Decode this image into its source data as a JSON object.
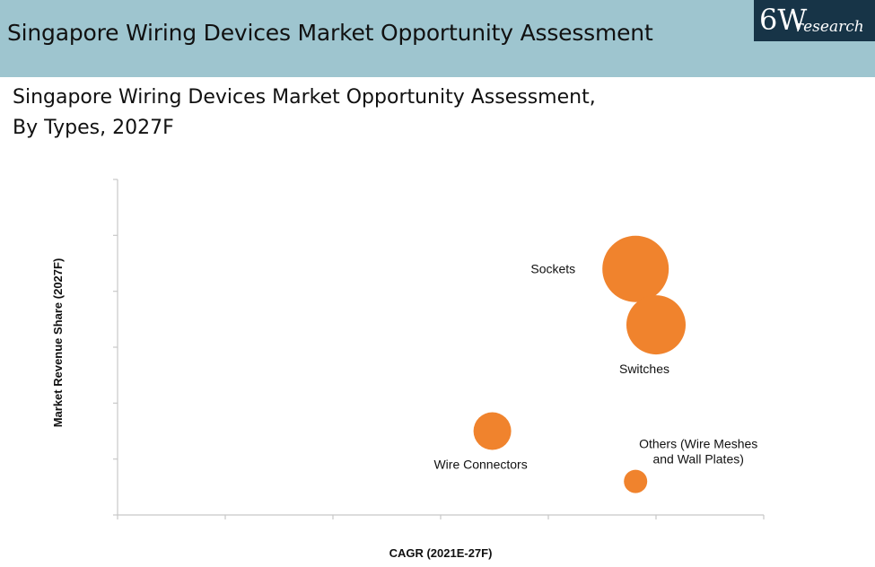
{
  "header": {
    "title": "Singapore Wiring Devices Market Opportunity Assessment",
    "logo_main": "6W",
    "logo_sub": "research"
  },
  "subtitle": {
    "line1": "Singapore Wiring Devices Market Opportunity Assessment,",
    "line2": "By Types, 2027F"
  },
  "colors": {
    "header_bg": "#9ec5cf",
    "logo_bg": "#173447",
    "bubble": "#f0832d",
    "axis": "#c8c8c8"
  },
  "chart_data": {
    "type": "bubble",
    "xlabel": "CAGR (2021E-27F)",
    "ylabel": "Market Revenue Share (2027F)",
    "xlim": [
      0,
      6
    ],
    "ylim": [
      0,
      6
    ],
    "x_tick_count": 6,
    "y_tick_count": 6,
    "points": [
      {
        "label": "Sockets",
        "label_lines": [
          "Sockets"
        ],
        "x": 4.81,
        "y": 4.4,
        "size": 37,
        "label_pos": "left"
      },
      {
        "label": "Switches",
        "label_lines": [
          "Switches"
        ],
        "x": 5.0,
        "y": 3.4,
        "size": 33,
        "label_pos": "below"
      },
      {
        "label": "Wire Connectors",
        "label_lines": [
          "Wire Connectors"
        ],
        "x": 3.48,
        "y": 1.5,
        "size": 21,
        "label_pos": "below"
      },
      {
        "label": "Others (Wire Meshes and Wall Plates)",
        "label_lines": [
          "Others (Wire Meshes",
          "and Wall Plates)"
        ],
        "x": 4.81,
        "y": 0.6,
        "size": 13,
        "label_pos": "above-right"
      }
    ]
  }
}
